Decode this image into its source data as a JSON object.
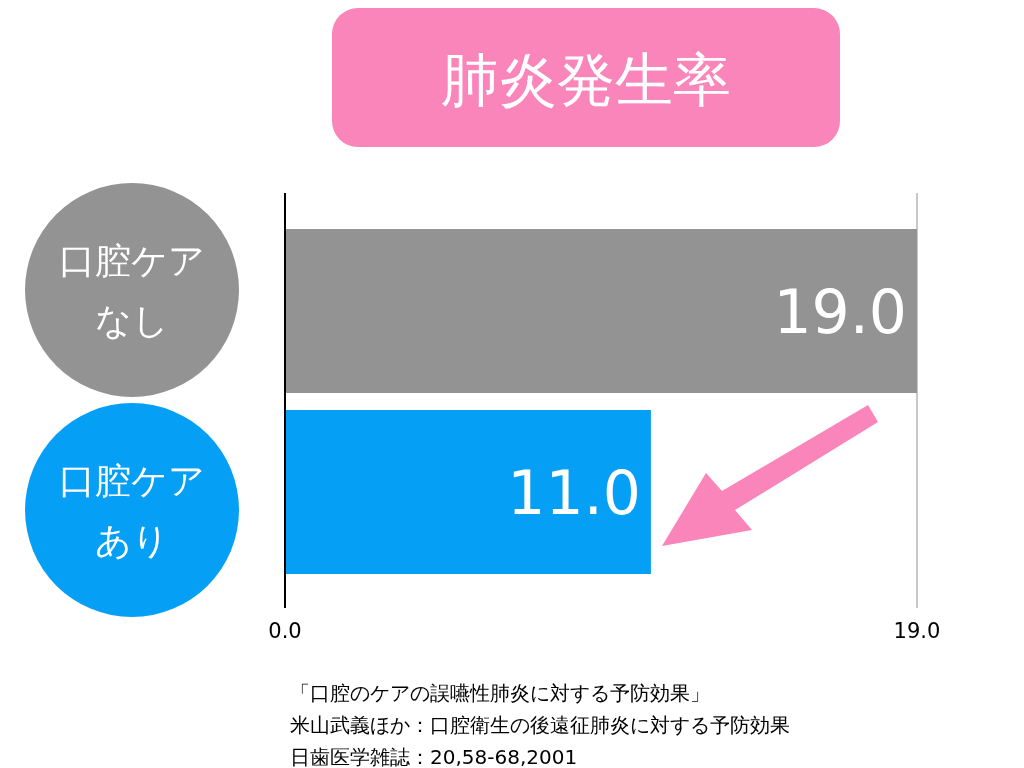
{
  "chart_data": {
    "type": "bar",
    "orientation": "horizontal",
    "title": "肺炎発生率",
    "categories": [
      "口腔ケアなし",
      "口腔ケアあり"
    ],
    "values": [
      19.0,
      11.0
    ],
    "colors": [
      "#939393",
      "#05a0f5"
    ],
    "value_labels": [
      "19.0",
      "11.0"
    ],
    "xlim": [
      0,
      19
    ],
    "xticks": [
      {
        "value": 0,
        "label": "0.0"
      },
      {
        "value": 19,
        "label": "19.0"
      }
    ],
    "annotations": [
      "「口腔のケアの誤嚥性肺炎に対する予防効果」",
      "米山武義ほか：口腔衛生の後遠征肺炎に対する予防効果",
      "日歯医学雑誌：20,58-68,2001"
    ]
  }
}
